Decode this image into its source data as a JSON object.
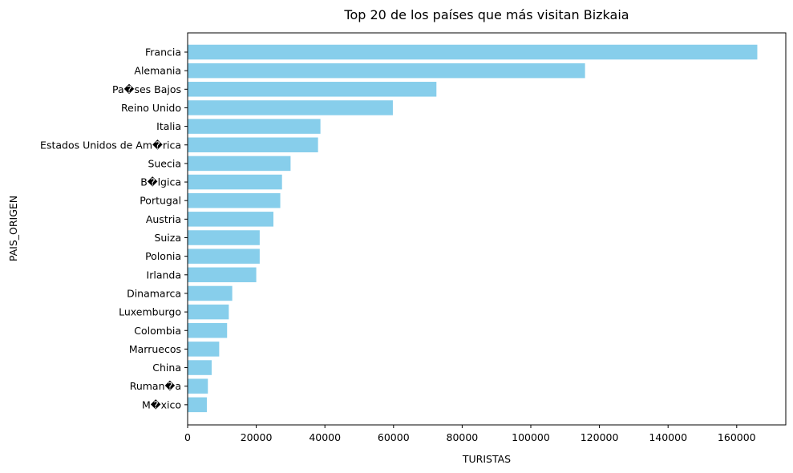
{
  "chart_data": {
    "type": "bar",
    "orientation": "horizontal",
    "title": "Top 20 de los países que más visitan Bizkaia",
    "xlabel": "TURISTAS",
    "ylabel": "PAIS_ORIGEN",
    "categories": [
      "Francia",
      "Alemania",
      "Pa�ses Bajos",
      "Reino Unido",
      "Italia",
      "Estados Unidos de Am�rica",
      "Suecia",
      "B�lgica",
      "Portugal",
      "Austria",
      "Suiza",
      "Polonia",
      "Irlanda",
      "Dinamarca",
      "Luxemburgo",
      "Colombia",
      "Marruecos",
      "China",
      "Ruman�a",
      "M�xico"
    ],
    "values": [
      166000,
      115800,
      72500,
      59800,
      38700,
      38000,
      30000,
      27500,
      27000,
      25000,
      21000,
      21000,
      20000,
      13000,
      12000,
      11500,
      9200,
      7000,
      5900,
      5600
    ],
    "xlim": [
      0,
      174300
    ],
    "xticks": [
      0,
      20000,
      40000,
      60000,
      80000,
      100000,
      120000,
      140000,
      160000
    ],
    "xtick_labels": [
      "0",
      "20000",
      "40000",
      "60000",
      "80000",
      "100000",
      "120000",
      "140000",
      "160000"
    ],
    "bar_color": "#87CEEB",
    "grid": false,
    "legend": false
  }
}
